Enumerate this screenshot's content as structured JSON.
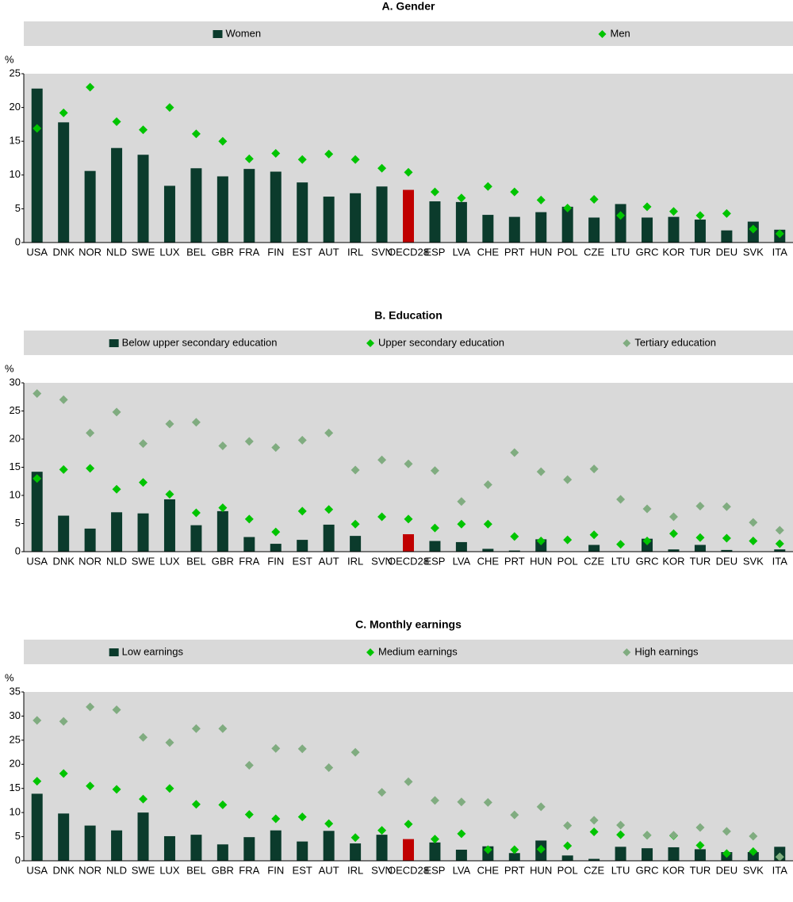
{
  "chart_data": [
    {
      "type": "bar",
      "title": "A. Gender",
      "y_label": "%",
      "categories": [
        "USA",
        "DNK",
        "NOR",
        "NLD",
        "SWE",
        "LUX",
        "BEL",
        "GBR",
        "FRA",
        "FIN",
        "EST",
        "AUT",
        "IRL",
        "SVN",
        "OECD28",
        "ESP",
        "LVA",
        "CHE",
        "PRT",
        "HUN",
        "POL",
        "CZE",
        "LTU",
        "GRC",
        "KOR",
        "TUR",
        "DEU",
        "SVK",
        "ITA"
      ],
      "series": [
        {
          "name": "Women",
          "marker": "bar",
          "color": "#0b3b2c",
          "values": [
            22.8,
            17.8,
            10.6,
            14.0,
            13.0,
            8.4,
            11.0,
            9.8,
            10.9,
            10.5,
            8.9,
            6.8,
            7.3,
            8.3,
            7.8,
            6.1,
            6.0,
            4.1,
            3.8,
            4.5,
            5.3,
            3.7,
            5.7,
            3.7,
            3.8,
            3.4,
            1.8,
            3.1,
            1.9
          ]
        },
        {
          "name": "Men",
          "marker": "diamond",
          "color": "#00c400",
          "values": [
            16.9,
            19.2,
            23.0,
            17.9,
            16.7,
            20.0,
            16.1,
            15.0,
            12.4,
            13.2,
            12.3,
            13.1,
            12.3,
            11.0,
            10.4,
            7.5,
            6.6,
            8.3,
            7.5,
            6.3,
            5.1,
            6.4,
            4.0,
            5.3,
            4.6,
            4.0,
            4.3,
            2.0,
            1.3
          ]
        }
      ],
      "highlight": {
        "category": "OECD28",
        "color": "#c00000"
      },
      "ylim": [
        0,
        25
      ],
      "yticks": [
        0,
        5,
        10,
        15,
        20,
        25
      ],
      "grid": false
    },
    {
      "type": "bar",
      "title": "B. Education",
      "y_label": "%",
      "categories": [
        "USA",
        "DNK",
        "NOR",
        "NLD",
        "SWE",
        "LUX",
        "BEL",
        "GBR",
        "FRA",
        "FIN",
        "EST",
        "AUT",
        "IRL",
        "SVN",
        "OECD28",
        "ESP",
        "LVA",
        "CHE",
        "PRT",
        "HUN",
        "POL",
        "CZE",
        "LTU",
        "GRC",
        "KOR",
        "TUR",
        "DEU",
        "SVK",
        "ITA"
      ],
      "series": [
        {
          "name": "Below upper secondary education",
          "marker": "bar",
          "color": "#0b3b2c",
          "values": [
            14.2,
            6.4,
            4.1,
            7.0,
            6.8,
            9.3,
            4.7,
            7.2,
            2.6,
            1.4,
            2.1,
            4.8,
            2.8,
            null,
            3.1,
            1.9,
            1.7,
            0.5,
            0.2,
            2.2,
            null,
            1.2,
            null,
            2.3,
            0.4,
            1.2,
            0.3,
            null,
            0.4
          ]
        },
        {
          "name": "Upper secondary education",
          "marker": "diamond",
          "color": "#00c400",
          "values": [
            13.0,
            14.6,
            14.8,
            11.1,
            12.3,
            10.2,
            6.9,
            7.8,
            5.8,
            3.5,
            7.2,
            7.5,
            4.9,
            6.2,
            5.8,
            4.2,
            4.9,
            4.9,
            2.7,
            1.9,
            2.1,
            3.0,
            1.3,
            1.9,
            3.2,
            2.5,
            2.4,
            1.9,
            1.4
          ]
        },
        {
          "name": "Tertiary education",
          "marker": "diamond",
          "color": "#80ac80",
          "values": [
            28.1,
            27.0,
            21.1,
            24.8,
            19.2,
            22.7,
            23.0,
            18.8,
            19.6,
            18.5,
            19.8,
            21.1,
            14.5,
            16.3,
            15.6,
            14.4,
            8.9,
            11.9,
            17.6,
            14.2,
            12.8,
            14.7,
            9.3,
            7.6,
            6.2,
            8.1,
            8.0,
            5.2,
            3.8
          ]
        }
      ],
      "highlight": {
        "category": "OECD28",
        "color": "#c00000"
      },
      "ylim": [
        0,
        30
      ],
      "yticks": [
        0,
        5,
        10,
        15,
        20,
        25,
        30
      ],
      "grid": false
    },
    {
      "type": "bar",
      "title": "C. Monthly earnings",
      "y_label": "%",
      "categories": [
        "USA",
        "DNK",
        "NOR",
        "NLD",
        "SWE",
        "LUX",
        "BEL",
        "GBR",
        "FRA",
        "FIN",
        "EST",
        "AUT",
        "IRL",
        "SVN",
        "OECD28",
        "ESP",
        "LVA",
        "CHE",
        "PRT",
        "HUN",
        "POL",
        "CZE",
        "LTU",
        "GRC",
        "KOR",
        "TUR",
        "DEU",
        "SVK",
        "ITA"
      ],
      "series": [
        {
          "name": "Low earnings",
          "marker": "bar",
          "color": "#0b3b2c",
          "values": [
            13.9,
            9.8,
            7.3,
            6.3,
            10.0,
            5.1,
            5.4,
            3.4,
            4.9,
            6.3,
            4.0,
            6.2,
            3.6,
            5.4,
            4.5,
            3.8,
            2.3,
            3.0,
            1.6,
            4.2,
            1.1,
            0.4,
            2.9,
            2.6,
            2.8,
            2.4,
            1.8,
            1.8,
            2.9
          ]
        },
        {
          "name": "Medium earnings",
          "marker": "diamond",
          "color": "#00c400",
          "values": [
            16.5,
            18.1,
            15.5,
            14.8,
            12.8,
            15.0,
            11.7,
            11.6,
            9.6,
            8.7,
            9.1,
            7.7,
            4.8,
            6.3,
            7.6,
            4.5,
            5.6,
            2.3,
            2.3,
            2.4,
            3.1,
            6.0,
            5.4,
            5.3,
            5.2,
            3.2,
            1.5,
            1.9,
            0.8
          ]
        },
        {
          "name": "High earnings",
          "marker": "diamond",
          "color": "#80ac80",
          "values": [
            29.1,
            28.9,
            31.9,
            31.3,
            25.6,
            24.5,
            27.4,
            27.4,
            19.8,
            23.3,
            23.2,
            19.3,
            22.5,
            14.2,
            16.4,
            12.5,
            12.2,
            12.1,
            9.5,
            11.2,
            7.3,
            8.4,
            7.4,
            5.3,
            5.3,
            6.9,
            6.1,
            5.1,
            0.8
          ]
        }
      ],
      "highlight": {
        "category": "OECD28",
        "color": "#c00000"
      },
      "ylim": [
        0,
        35
      ],
      "yticks": [
        0,
        5,
        10,
        15,
        20,
        25,
        30,
        35
      ],
      "grid": false
    }
  ]
}
